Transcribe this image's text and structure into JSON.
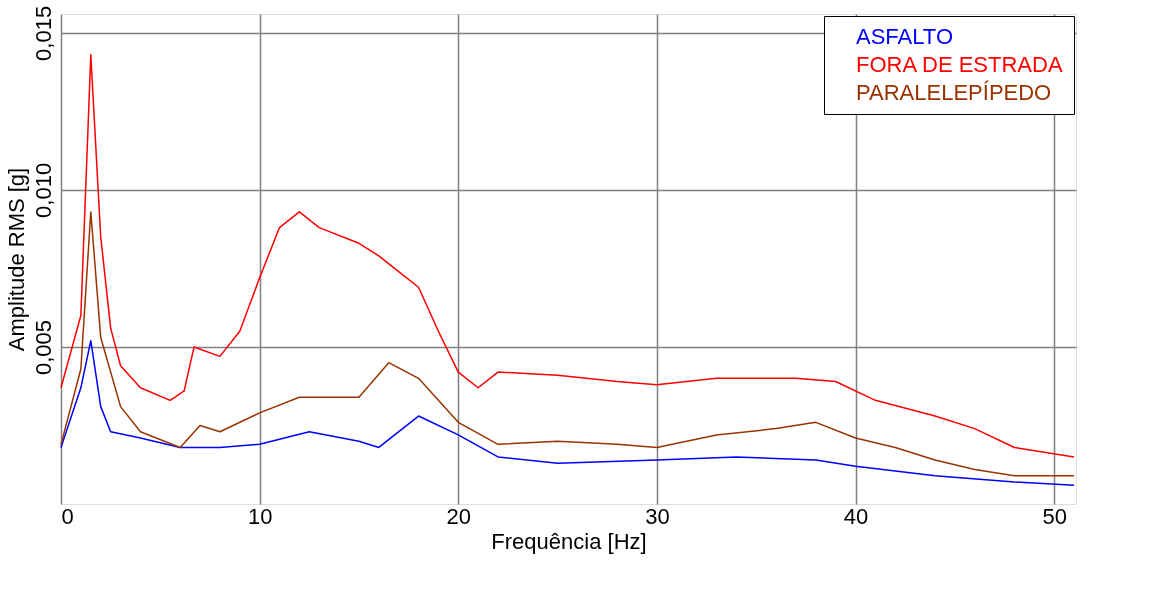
{
  "chart_data": {
    "type": "line",
    "xlabel": "Frequência [Hz]",
    "ylabel": "Amplitude RMS [g]",
    "xlim": [
      0,
      51.1
    ],
    "ylim": [
      0,
      0.0156
    ],
    "xticks": [
      0,
      10,
      20,
      30,
      40,
      50
    ],
    "yticks": [
      {
        "value": 0.005,
        "label": "0,005"
      },
      {
        "value": 0.01,
        "label": "0,010"
      },
      {
        "value": 0.015,
        "label": "0,015"
      }
    ],
    "grid": true,
    "legend": "top right",
    "line_style": "solid",
    "marker": "none",
    "series": [
      {
        "name": "ASFALTO",
        "color": "#0000ff",
        "x": [
          0,
          1,
          1.5,
          2,
          2.5,
          4,
          6,
          8,
          10,
          12.5,
          15,
          16,
          18,
          20,
          22,
          25,
          30,
          34,
          38,
          40,
          44,
          48,
          51
        ],
        "values": [
          0.0018,
          0.0037,
          0.0052,
          0.0031,
          0.0023,
          0.0021,
          0.0018,
          0.0018,
          0.0019,
          0.0023,
          0.002,
          0.0018,
          0.0028,
          0.0022,
          0.0015,
          0.0013,
          0.0014,
          0.0015,
          0.0014,
          0.0012,
          0.0009,
          0.0007,
          0.0006
        ]
      },
      {
        "name": "FORA DE ESTRADA",
        "color": "#ff0000",
        "x": [
          0,
          1,
          1.5,
          2,
          2.5,
          3,
          4,
          5.5,
          6.2,
          6.7,
          8,
          9,
          10,
          11,
          12,
          13,
          15,
          16,
          17,
          18,
          19,
          20,
          21,
          22,
          25,
          28,
          30,
          33,
          37,
          39,
          41,
          44,
          46,
          48,
          51
        ],
        "values": [
          0.0037,
          0.006,
          0.0143,
          0.0085,
          0.0056,
          0.0044,
          0.0037,
          0.0033,
          0.0036,
          0.005,
          0.0047,
          0.0055,
          0.0072,
          0.0088,
          0.0093,
          0.0088,
          0.0083,
          0.0079,
          0.0074,
          0.0069,
          0.0055,
          0.0042,
          0.0037,
          0.0042,
          0.0041,
          0.0039,
          0.0038,
          0.004,
          0.004,
          0.0039,
          0.0033,
          0.0028,
          0.0024,
          0.0018,
          0.0015
        ]
      },
      {
        "name": "PARALELEPÍPEDO",
        "color": "#993300",
        "x": [
          0,
          1,
          1.5,
          2,
          3,
          4,
          6,
          7,
          8,
          10,
          12,
          15,
          16.5,
          18,
          20,
          22,
          25,
          28,
          30,
          33,
          36,
          38,
          40,
          42,
          44,
          46,
          48,
          51
        ],
        "values": [
          0.0019,
          0.0043,
          0.0093,
          0.0053,
          0.0031,
          0.0023,
          0.0018,
          0.0025,
          0.0023,
          0.0029,
          0.0034,
          0.0034,
          0.0045,
          0.004,
          0.0026,
          0.0019,
          0.002,
          0.0019,
          0.0018,
          0.0022,
          0.0024,
          0.0026,
          0.0021,
          0.0018,
          0.0014,
          0.0011,
          0.0009,
          0.0009
        ]
      }
    ]
  }
}
